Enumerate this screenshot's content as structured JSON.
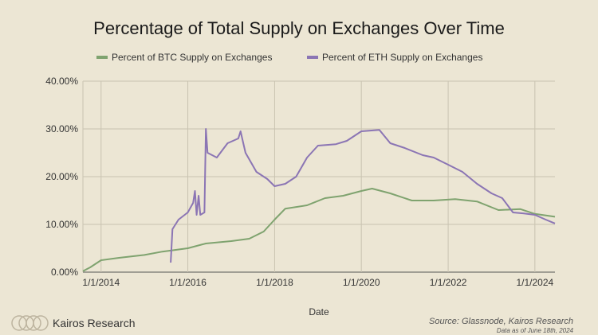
{
  "chart_data": {
    "type": "line",
    "title": "Percentage of Total Supply on Exchanges Over Time",
    "xlabel": "Date",
    "ylabel": "",
    "xlim": [
      "2013-08-01",
      "2024-06-18"
    ],
    "ylim": [
      0,
      40
    ],
    "y_ticks": [
      "0.00%",
      "10.00%",
      "20.00%",
      "30.00%",
      "40.00%"
    ],
    "x_ticks": [
      "1/1/2014",
      "1/1/2016",
      "1/1/2018",
      "1/1/2020",
      "1/1/2022",
      "1/1/2024"
    ],
    "legend_position": "top",
    "grid": true,
    "series": [
      {
        "name": "Percent of BTC Supply on Exchanges",
        "color": "#7fa36f",
        "points": [
          [
            "2013-08-01",
            0.2
          ],
          [
            "2013-10-01",
            1.0
          ],
          [
            "2014-01-01",
            2.5
          ],
          [
            "2014-06-01",
            3.0
          ],
          [
            "2015-01-01",
            3.6
          ],
          [
            "2015-06-01",
            4.3
          ],
          [
            "2016-01-01",
            5.0
          ],
          [
            "2016-06-01",
            6.0
          ],
          [
            "2017-01-01",
            6.5
          ],
          [
            "2017-06-01",
            7.0
          ],
          [
            "2017-10-01",
            8.5
          ],
          [
            "2018-01-01",
            11.0
          ],
          [
            "2018-04-01",
            13.3
          ],
          [
            "2018-10-01",
            14.0
          ],
          [
            "2019-03-01",
            15.5
          ],
          [
            "2019-08-01",
            16.0
          ],
          [
            "2020-01-01",
            17.0
          ],
          [
            "2020-04-01",
            17.5
          ],
          [
            "2020-09-01",
            16.5
          ],
          [
            "2021-03-01",
            15.0
          ],
          [
            "2021-09-01",
            15.0
          ],
          [
            "2022-03-01",
            15.3
          ],
          [
            "2022-09-01",
            14.8
          ],
          [
            "2023-03-01",
            13.0
          ],
          [
            "2023-09-01",
            13.2
          ],
          [
            "2024-01-01",
            12.2
          ],
          [
            "2024-06-18",
            11.6
          ]
        ]
      },
      {
        "name": "Percent of ETH Supply on Exchanges",
        "color": "#8b75b4",
        "points": [
          [
            "2015-08-10",
            2.0
          ],
          [
            "2015-08-25",
            9.0
          ],
          [
            "2015-10-15",
            11.0
          ],
          [
            "2016-01-01",
            12.5
          ],
          [
            "2016-02-15",
            14.5
          ],
          [
            "2016-03-01",
            17.0
          ],
          [
            "2016-03-15",
            12.0
          ],
          [
            "2016-04-01",
            16.0
          ],
          [
            "2016-04-15",
            12.0
          ],
          [
            "2016-05-20",
            12.5
          ],
          [
            "2016-06-01",
            30.0
          ],
          [
            "2016-06-15",
            25.0
          ],
          [
            "2016-09-01",
            24.0
          ],
          [
            "2016-12-01",
            27.0
          ],
          [
            "2017-03-01",
            28.0
          ],
          [
            "2017-03-20",
            29.5
          ],
          [
            "2017-05-01",
            25.0
          ],
          [
            "2017-08-01",
            21.0
          ],
          [
            "2017-11-01",
            19.5
          ],
          [
            "2018-01-01",
            18.0
          ],
          [
            "2018-04-01",
            18.5
          ],
          [
            "2018-07-01",
            20.0
          ],
          [
            "2018-10-01",
            24.0
          ],
          [
            "2019-01-01",
            26.5
          ],
          [
            "2019-06-01",
            26.8
          ],
          [
            "2019-09-01",
            27.5
          ],
          [
            "2020-01-01",
            29.5
          ],
          [
            "2020-06-01",
            29.8
          ],
          [
            "2020-09-01",
            27.0
          ],
          [
            "2021-01-01",
            26.0
          ],
          [
            "2021-06-01",
            24.5
          ],
          [
            "2021-09-01",
            24.0
          ],
          [
            "2022-01-01",
            22.5
          ],
          [
            "2022-05-01",
            21.0
          ],
          [
            "2022-09-01",
            18.5
          ],
          [
            "2023-01-01",
            16.5
          ],
          [
            "2023-04-01",
            15.5
          ],
          [
            "2023-07-01",
            12.5
          ],
          [
            "2023-10-01",
            12.3
          ],
          [
            "2024-01-01",
            12.0
          ],
          [
            "2024-04-01",
            11.0
          ],
          [
            "2024-06-18",
            10.2
          ]
        ]
      }
    ]
  },
  "footer": {
    "brand": "Kairos Research",
    "source": "Source: Glassnode, Kairos Research",
    "date_note": "Data as of June 18th, 2024"
  },
  "colors": {
    "background": "#ece6d4",
    "grid": "#c9c3b1",
    "axis": "#555555"
  }
}
